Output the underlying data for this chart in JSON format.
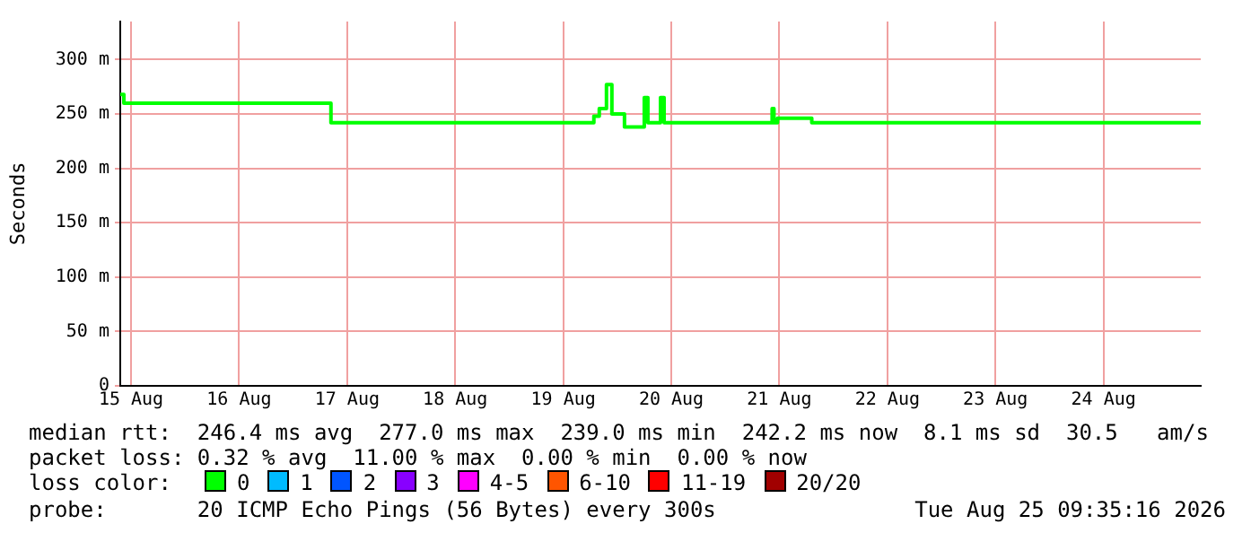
{
  "chart_data": {
    "type": "step",
    "ylabel": "Seconds",
    "legend_title": "loss color:",
    "legend": "bottom",
    "grid": true,
    "marker": "none",
    "line_style": "solid",
    "x": [
      "2026-08-15T09:36",
      "2026-08-15T10:24",
      "2026-08-17T08:00",
      "2026-08-17T08:24",
      "2026-08-19T18:48",
      "2026-08-19T20:00",
      "2026-08-19T21:36",
      "2026-08-19T22:48",
      "2026-08-20T01:12",
      "2026-08-20T01:36",
      "2026-08-20T05:36",
      "2026-08-20T06:00",
      "2026-08-20T06:48",
      "2026-08-20T09:12",
      "2026-08-20T09:36",
      "2026-08-20T10:24",
      "2026-08-21T10:00",
      "2026-08-21T10:24",
      "2026-08-21T10:48",
      "2026-08-21T11:36",
      "2026-08-21T18:48",
      "2026-08-21T19:12",
      "2026-08-25T09:35"
    ],
    "series": [
      {
        "name": "0",
        "color": "#00ff00",
        "values": [
          268,
          260,
          260,
          242,
          248,
          255,
          277,
          250,
          250,
          238,
          238,
          265,
          242,
          242,
          265,
          242,
          242,
          255,
          242,
          246,
          246,
          242,
          242
        ]
      },
      {
        "name": "1",
        "color": "#00bbff",
        "values": [
          null,
          null,
          null,
          null,
          null,
          null,
          null,
          null,
          null,
          null,
          null,
          null,
          null,
          null,
          null,
          null,
          null,
          null,
          null,
          null,
          null,
          null,
          null
        ]
      },
      {
        "name": "2",
        "color": "#0055ff",
        "values": [
          null,
          null,
          null,
          null,
          null,
          null,
          null,
          null,
          null,
          null,
          null,
          null,
          null,
          null,
          null,
          null,
          null,
          null,
          null,
          null,
          null,
          null,
          null
        ]
      },
      {
        "name": "3",
        "color": "#8800ff",
        "values": [
          null,
          null,
          null,
          null,
          null,
          null,
          null,
          null,
          null,
          null,
          null,
          null,
          null,
          null,
          null,
          null,
          null,
          null,
          null,
          null,
          null,
          null,
          null
        ]
      },
      {
        "name": "4-5",
        "color": "#ff00ff",
        "values": [
          null,
          null,
          null,
          null,
          null,
          null,
          null,
          null,
          null,
          null,
          null,
          null,
          null,
          null,
          null,
          null,
          null,
          null,
          null,
          null,
          null,
          null,
          null
        ]
      },
      {
        "name": "6-10",
        "color": "#ff5500",
        "values": [
          null,
          null,
          null,
          null,
          null,
          null,
          null,
          null,
          null,
          null,
          null,
          null,
          null,
          null,
          null,
          null,
          null,
          null,
          null,
          null,
          null,
          null,
          null
        ]
      },
      {
        "name": "11-19",
        "color": "#ff0000",
        "values": [
          null,
          null,
          null,
          null,
          null,
          null,
          null,
          null,
          null,
          null,
          null,
          null,
          null,
          null,
          null,
          null,
          null,
          null,
          null,
          null,
          null,
          null,
          null
        ]
      },
      {
        "name": "20/20",
        "color": "#a10000",
        "values": [
          null,
          null,
          null,
          null,
          null,
          null,
          null,
          null,
          null,
          null,
          null,
          null,
          null,
          null,
          null,
          null,
          null,
          null,
          null,
          null,
          null,
          null,
          null
        ]
      }
    ],
    "xlim": [
      "2026-08-15T09:36",
      "2026-08-25T09:36"
    ],
    "xticks": [
      {
        "value": "2026-08-15T12:00",
        "label": "15 Aug"
      },
      {
        "value": "2026-08-16T12:00",
        "label": "16 Aug"
      },
      {
        "value": "2026-08-17T12:00",
        "label": "17 Aug"
      },
      {
        "value": "2026-08-18T12:00",
        "label": "18 Aug"
      },
      {
        "value": "2026-08-19T12:00",
        "label": "19 Aug"
      },
      {
        "value": "2026-08-20T12:00",
        "label": "20 Aug"
      },
      {
        "value": "2026-08-21T12:00",
        "label": "21 Aug"
      },
      {
        "value": "2026-08-22T12:00",
        "label": "22 Aug"
      },
      {
        "value": "2026-08-23T12:00",
        "label": "23 Aug"
      },
      {
        "value": "2026-08-24T12:00",
        "label": "24 Aug"
      }
    ],
    "ylim": [
      0,
      335
    ],
    "yticks": [
      0,
      {
        "value": 50,
        "label": "50 m"
      },
      {
        "value": 100,
        "label": "100 m"
      },
      {
        "value": 150,
        "label": "150 m"
      },
      {
        "value": 200,
        "label": "200 m"
      },
      {
        "value": 250,
        "label": "250 m"
      },
      {
        "value": 300,
        "label": "300 m"
      }
    ],
    "annotations": [
      "median rtt:  246.4 ms avg  277.0 ms max  239.0 ms min  242.2 ms now  8.1 ms sd  30.5   am/s",
      "packet loss: 0.32 % avg  11.00 % max  0.00 % min  0.00 % now",
      "probe:       20 ICMP Echo Pings (56 Bytes) every 300s",
      "Tue Aug 25 09:35:16 2026"
    ]
  }
}
